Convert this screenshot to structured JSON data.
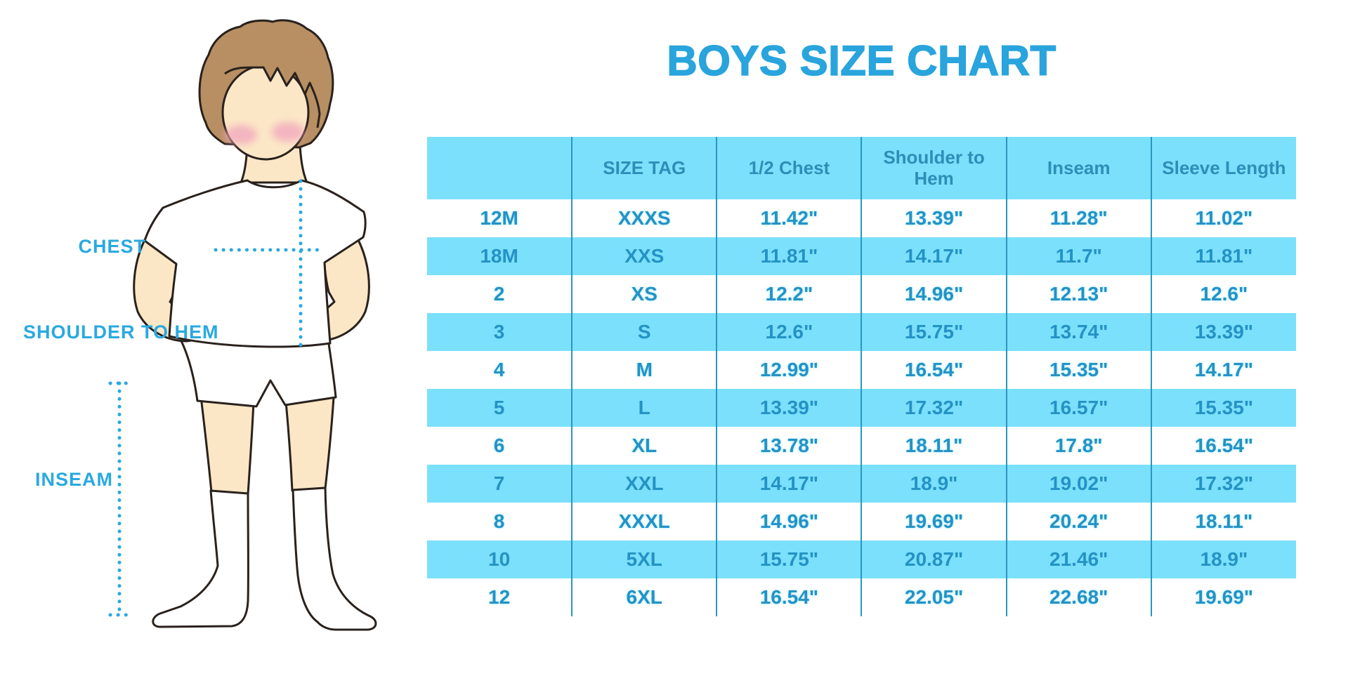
{
  "title": {
    "text": "BOYS SIZE CHART",
    "color": "#29A4DC"
  },
  "figure": {
    "labels": {
      "chest": "CHEST",
      "shoulder_to_hem": "SHOULDER TO HEM",
      "inseam": "INSEAM"
    },
    "colors": {
      "skin": "#FBE7C6",
      "hair": "#B78F63",
      "blush": "#F2A9BE",
      "outline": "#29211c",
      "garment": "#ffffff",
      "measure_line": "#29A9E0"
    }
  },
  "table": {
    "headers": [
      "",
      "SIZE TAG",
      "1/2 Chest",
      "Shoulder to Hem",
      "Inseam",
      "Sleeve Length"
    ],
    "rows": [
      [
        "12M",
        "XXXS",
        "11.42\"",
        "13.39\"",
        "11.28\"",
        "11.02\""
      ],
      [
        "18M",
        "XXS",
        "11.81\"",
        "14.17\"",
        "11.7\"",
        "11.81\""
      ],
      [
        "2",
        "XS",
        "12.2\"",
        "14.96\"",
        "12.13\"",
        "12.6\""
      ],
      [
        "3",
        "S",
        "12.6\"",
        "15.75\"",
        "13.74\"",
        "13.39\""
      ],
      [
        "4",
        "M",
        "12.99\"",
        "16.54\"",
        "15.35\"",
        "14.17\""
      ],
      [
        "5",
        "L",
        "13.39\"",
        "17.32\"",
        "16.57\"",
        "15.35\""
      ],
      [
        "6",
        "XL",
        "13.78\"",
        "18.11\"",
        "17.8\"",
        "16.54\""
      ],
      [
        "7",
        "XXL",
        "14.17\"",
        "18.9\"",
        "19.02\"",
        "17.32\""
      ],
      [
        "8",
        "XXXL",
        "14.96\"",
        "19.69\"",
        "20.24\"",
        "18.11\""
      ],
      [
        "10",
        "5XL",
        "15.75\"",
        "20.87\"",
        "21.46\"",
        "18.9\""
      ],
      [
        "12",
        "6XL",
        "16.54\"",
        "22.05\"",
        "22.68\"",
        "19.69\""
      ]
    ],
    "colors": {
      "header_bg": "#7BE0FB",
      "row_alt_bg": "#7BE0FB",
      "header_text": "#2B8FB9",
      "cell_text": "#2492C5",
      "divider": "#2A96C0"
    }
  }
}
